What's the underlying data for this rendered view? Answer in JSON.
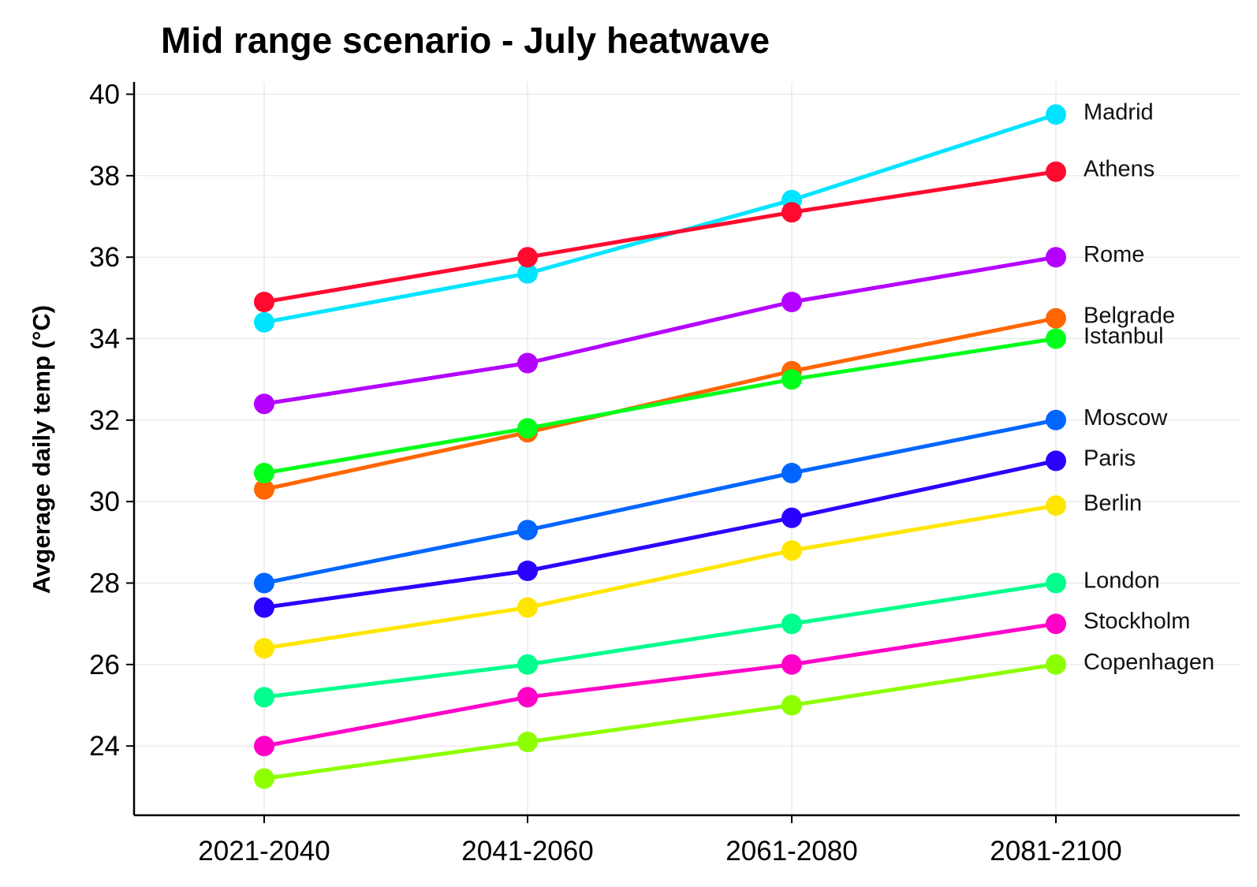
{
  "chart_data": {
    "type": "line",
    "title": "Mid range scenario - July heatwave",
    "xlabel": "",
    "ylabel": "Avgerage daily temp (°C)",
    "categories": [
      "2021-2040",
      "2041-2060",
      "2061-2080",
      "2081-2100"
    ],
    "ylim": [
      22.3,
      40.3
    ],
    "yticks": [
      24,
      26,
      28,
      30,
      32,
      34,
      36,
      38,
      40
    ],
    "grid": true,
    "legend": "labels at line ends (right)",
    "series": [
      {
        "name": "Madrid",
        "color": "#00e5ff",
        "values": [
          34.4,
          35.6,
          37.4,
          39.5
        ]
      },
      {
        "name": "Athens",
        "color": "#ff0a2f",
        "values": [
          34.9,
          36.0,
          37.1,
          38.1
        ]
      },
      {
        "name": "Rome",
        "color": "#b400ff",
        "values": [
          32.4,
          33.4,
          34.9,
          36.0
        ]
      },
      {
        "name": "Belgrade",
        "color": "#ff6600",
        "values": [
          30.3,
          31.7,
          33.2,
          34.5
        ]
      },
      {
        "name": "Istanbul",
        "color": "#00ff1a",
        "values": [
          30.7,
          31.8,
          33.0,
          34.0
        ]
      },
      {
        "name": "Moscow",
        "color": "#0066ff",
        "values": [
          28.0,
          29.3,
          30.7,
          32.0
        ]
      },
      {
        "name": "Paris",
        "color": "#2b00ff",
        "values": [
          27.4,
          28.3,
          29.6,
          31.0
        ]
      },
      {
        "name": "Berlin",
        "color": "#ffe600",
        "values": [
          26.4,
          27.4,
          28.8,
          29.9
        ]
      },
      {
        "name": "London",
        "color": "#00ff8c",
        "values": [
          25.2,
          26.0,
          27.0,
          28.0
        ]
      },
      {
        "name": "Stockholm",
        "color": "#ff00c8",
        "values": [
          24.0,
          25.2,
          26.0,
          27.0
        ]
      },
      {
        "name": "Copenhagen",
        "color": "#8cff00",
        "values": [
          23.2,
          24.1,
          25.0,
          26.0
        ]
      }
    ]
  }
}
